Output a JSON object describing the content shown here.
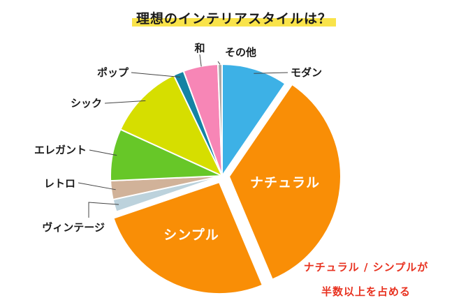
{
  "title": "理想のインテリアスタイルは？",
  "colors": {
    "title_highlight": "#f9e34a",
    "note": "#e8311f"
  },
  "chart_data": {
    "type": "pie",
    "title": "理想のインテリアスタイルは？",
    "unit": "%",
    "slices": [
      {
        "label": "モダン",
        "value": 9.5,
        "color": "#3db1e6"
      },
      {
        "label": "ナチュラル",
        "value": 34.0,
        "color": "#f98e06"
      },
      {
        "label": "シンプル",
        "value": 26.0,
        "color": "#f98e06"
      },
      {
        "label": "ヴィンテージ",
        "value": 1.8,
        "color": "#bcd2dc"
      },
      {
        "label": "レトロ",
        "value": 2.7,
        "color": "#d1b299"
      },
      {
        "label": "エレガント",
        "value": 7.5,
        "color": "#67c728"
      },
      {
        "label": "シック",
        "value": 11.0,
        "color": "#d6de00"
      },
      {
        "label": "ポップ",
        "value": 1.5,
        "color": "#1483a4"
      },
      {
        "label": "和",
        "value": 5.0,
        "color": "#f786b6"
      },
      {
        "label": "その他",
        "value": 0.6,
        "color": "#a8a8a8"
      }
    ]
  },
  "annotation": {
    "line1": "ナチュラル / シンプルが",
    "line2": "半数以上を占める"
  }
}
